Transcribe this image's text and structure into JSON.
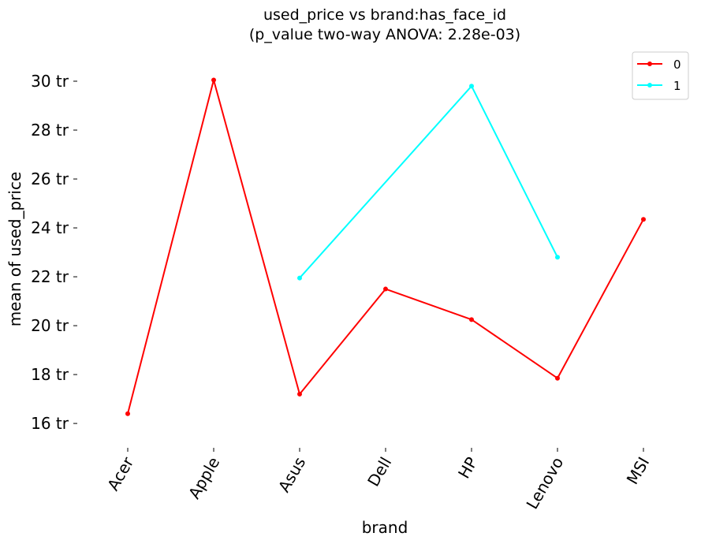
{
  "chart_data": {
    "type": "line",
    "title": "used_price vs brand:has_face_id",
    "subtitle": "(p_value two-way ANOVA: 2.28e-03)",
    "xlabel": "brand",
    "ylabel": "mean of used_price",
    "categories": [
      "Acer",
      "Apple",
      "Asus",
      "Dell",
      "HP",
      "Lenovo",
      "MSI"
    ],
    "y_tick_values": [
      16,
      18,
      20,
      22,
      24,
      26,
      28,
      30
    ],
    "y_tick_labels": [
      "16 tr",
      "18 tr",
      "20 tr",
      "22 tr",
      "24 tr",
      "26 tr",
      "28 tr",
      "30 tr"
    ],
    "ylim": [
      15.1,
      31.0
    ],
    "grid": false,
    "legend_position": "top-right",
    "series": [
      {
        "name": "0",
        "color": "#ff0000",
        "values": [
          16.4,
          30.05,
          17.2,
          21.5,
          20.25,
          17.85,
          24.35
        ]
      },
      {
        "name": "1",
        "color": "#00ffff",
        "values": [
          null,
          null,
          21.95,
          null,
          29.8,
          22.8,
          null
        ]
      }
    ]
  }
}
